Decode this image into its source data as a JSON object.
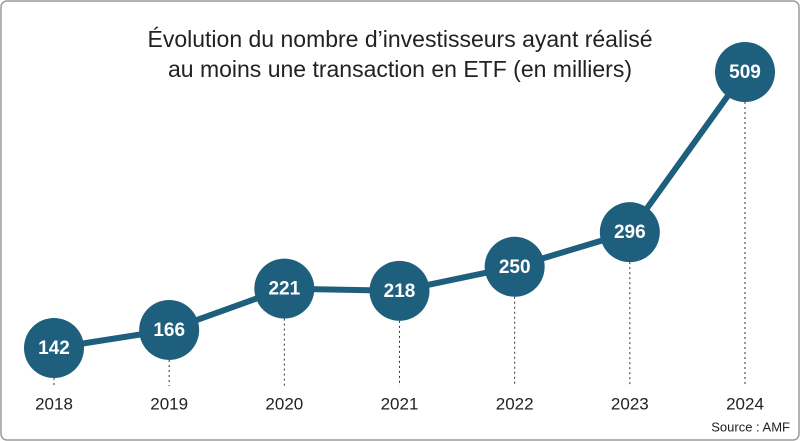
{
  "chart_data": {
    "type": "line",
    "title": [
      "Évolution du nombre d’investisseurs ayant réalisé",
      "au moins une transaction en ETF (en milliers)"
    ],
    "categories": [
      "2018",
      "2019",
      "2020",
      "2021",
      "2022",
      "2023",
      "2024"
    ],
    "values": [
      142,
      166,
      221,
      218,
      250,
      296,
      509
    ],
    "color": "#1e5f7e",
    "source": "Source : AMF"
  }
}
